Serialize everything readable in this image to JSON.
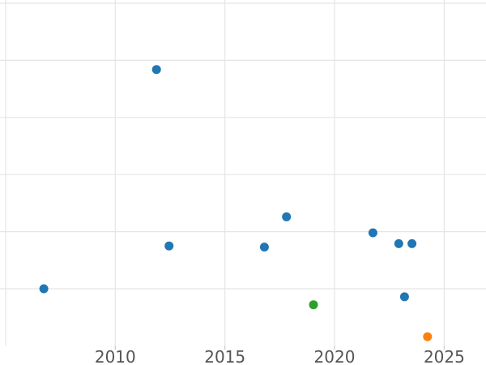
{
  "chart_data": {
    "type": "scatter",
    "title": "",
    "xlabel": "",
    "ylabel": "",
    "grid": true,
    "legend": false,
    "x_axis": {
      "tick_labels": [
        "2010",
        "2015",
        "2020",
        "2025"
      ],
      "tick_values": [
        2010,
        2015,
        2020,
        2025
      ],
      "gridline_values": [
        2005,
        2010,
        2015,
        2020,
        2025
      ],
      "visible_range": [
        2004.7,
        2026.9
      ]
    },
    "y_axis": {
      "tick_labels": [],
      "note": "no y tick labels visible in image; y expressed in unlabeled grid units (1 unit = one horizontal gridline spacing, 0 = bottom edge of plot)",
      "gridline_values": [
        1,
        2,
        3,
        4,
        5,
        6
      ],
      "visible_range": [
        0,
        6.06
      ]
    },
    "series": [
      {
        "name": "blue-points",
        "color": "#1f77b4",
        "points": [
          {
            "x": 2006.74,
            "y": 1.0
          },
          {
            "x": 2011.88,
            "y": 4.84
          },
          {
            "x": 2012.45,
            "y": 1.75
          },
          {
            "x": 2016.8,
            "y": 1.73
          },
          {
            "x": 2017.81,
            "y": 2.26
          },
          {
            "x": 2021.75,
            "y": 1.98
          },
          {
            "x": 2022.93,
            "y": 1.79
          },
          {
            "x": 2023.53,
            "y": 1.79
          },
          {
            "x": 2023.19,
            "y": 0.86
          }
        ]
      },
      {
        "name": "green-points",
        "color": "#2ca02c",
        "points": [
          {
            "x": 2019.04,
            "y": 0.72
          }
        ]
      },
      {
        "name": "orange-points",
        "color": "#ff7f0e",
        "points": [
          {
            "x": 2024.24,
            "y": 0.16
          }
        ]
      }
    ],
    "style": {
      "background": "#ffffff",
      "gridline_color": "#e5e5e5",
      "tick_mark_color": "#cccccc",
      "tick_label_color": "#555555",
      "marker_radius_px": 5.5
    }
  }
}
